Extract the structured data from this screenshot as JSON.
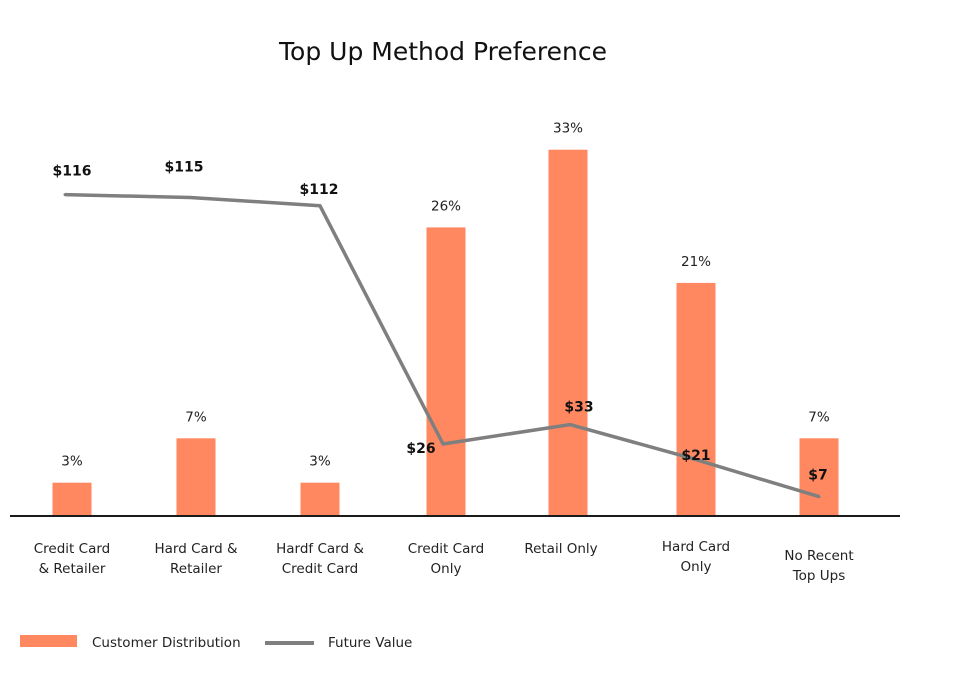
{
  "chart_data": {
    "type": "bar",
    "title": "Top Up Method Preference",
    "categories": [
      [
        "Credit Card",
        "& Retailer"
      ],
      [
        "Hard Card &",
        "Retailer"
      ],
      [
        "Hardf Card &",
        "Credit Card"
      ],
      [
        "Credit Card",
        "Only"
      ],
      [
        "Retail Only"
      ],
      [
        "Hard Card",
        "Only"
      ],
      [
        "No Recent",
        "Top Ups"
      ]
    ],
    "series": [
      {
        "name": "Customer Distribution",
        "type": "bar",
        "values": [
          3,
          7,
          3,
          26,
          33,
          21,
          7
        ],
        "labels": [
          "3%",
          "7%",
          "3%",
          "26%",
          "33%",
          "21%",
          "7%"
        ],
        "color": "#FF8860"
      },
      {
        "name": "Future Value",
        "type": "line",
        "values": [
          116,
          115,
          112,
          26,
          33,
          21,
          7
        ],
        "labels": [
          "$116",
          "$115",
          "$112",
          "$26",
          "$33",
          "$21",
          "$7"
        ],
        "color": "#7F7F7F"
      }
    ],
    "ylim_bar": [
      0,
      36
    ],
    "ylim_line": [
      0,
      140
    ],
    "grid": false,
    "legend": "bottom-left"
  }
}
